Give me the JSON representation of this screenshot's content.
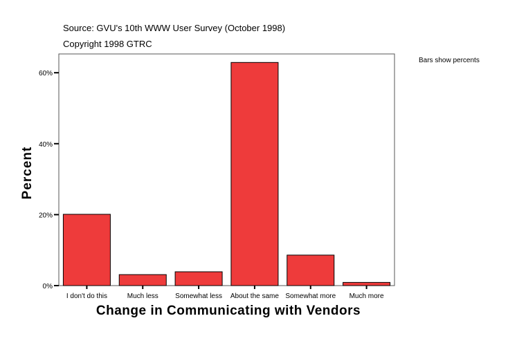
{
  "header": {
    "source": "Source: GVU's 10th WWW User Survey (October 1998)",
    "copyright": "Copyright 1998 GTRC",
    "note": "Bars show percents"
  },
  "chart_data": {
    "type": "bar",
    "title": "",
    "xlabel": "Change in Communicating with Vendors",
    "ylabel": "Percent",
    "categories": [
      "I don't do this",
      "Much less",
      "Somewhat less",
      "About the same",
      "Somewhat more",
      "Much more"
    ],
    "values": [
      20.1,
      3.1,
      3.9,
      62.9,
      8.6,
      0.9
    ],
    "ylim": [
      0,
      65.3
    ],
    "yticks": [
      0,
      20,
      40,
      60
    ],
    "ytick_labels": [
      "0%",
      "20%",
      "40%",
      "60%"
    ],
    "grid": false,
    "legend": "none",
    "bar_color": "#EE3B3B"
  }
}
